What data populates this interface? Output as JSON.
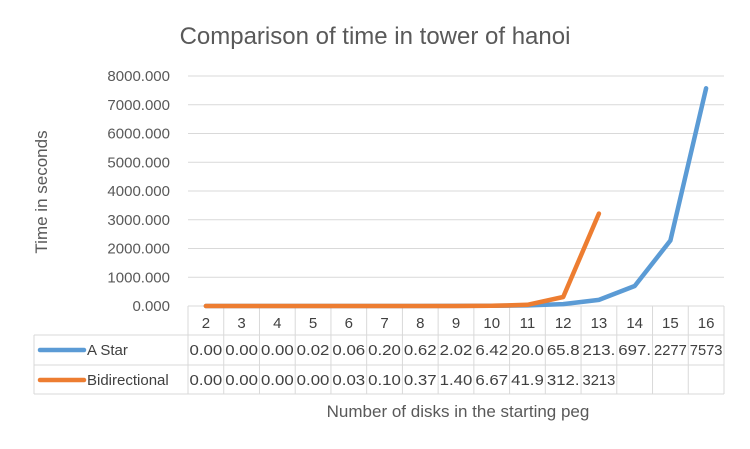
{
  "chart_data": {
    "type": "line",
    "title": "Comparison of time in tower of hanoi",
    "xlabel": "Number of disks in the starting peg",
    "ylabel": "Time in seconds",
    "categories": [
      "2",
      "3",
      "4",
      "5",
      "6",
      "7",
      "8",
      "9",
      "10",
      "11",
      "12",
      "13",
      "14",
      "15",
      "16"
    ],
    "ylim": [
      0,
      8000
    ],
    "yticks": [
      "0.000",
      "1000.000",
      "2000.000",
      "3000.000",
      "4000.000",
      "5000.000",
      "6000.000",
      "7000.000",
      "8000.000"
    ],
    "grid": true,
    "legend": "data-table",
    "series": [
      {
        "name": "A Star",
        "color": "#5b9bd5",
        "values": [
          0.0,
          0.0,
          0.0,
          0.02,
          0.06,
          0.2,
          0.62,
          2.02,
          6.42,
          20.0,
          65.8,
          213,
          697,
          2277,
          7573
        ],
        "table_labels": [
          "0.00",
          "0.00",
          "0.00",
          "0.02",
          "0.06",
          "0.20",
          "0.62",
          "2.02",
          "6.42",
          "20.0",
          "65.8",
          "213.",
          "697.",
          "2277",
          "7573"
        ]
      },
      {
        "name": "Bidirectional",
        "color": "#ed7d31",
        "values": [
          0.0,
          0.0,
          0.0,
          0.0,
          0.03,
          0.1,
          0.37,
          1.4,
          6.67,
          41.9,
          312,
          3213,
          null,
          null,
          null
        ],
        "table_labels": [
          "0.00",
          "0.00",
          "0.00",
          "0.00",
          "0.03",
          "0.10",
          "0.37",
          "1.40",
          "6.67",
          "41.9",
          "312.",
          "3213",
          "",
          "",
          ""
        ]
      }
    ]
  }
}
